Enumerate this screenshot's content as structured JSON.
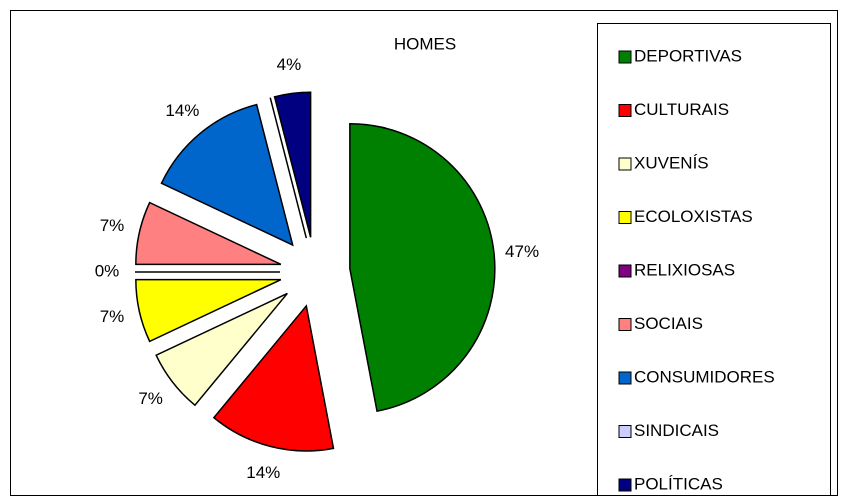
{
  "chart_data": {
    "type": "pie",
    "title": "HOMES",
    "categories": [
      "DEPORTIVAS",
      "CULTURAIS",
      "XUVENÍS",
      "ECOLOXISTAS",
      "RELIXIOSAS",
      "SOCIAIS",
      "CONSUMIDORES",
      "SINDICAIS",
      "POLÍTICAS"
    ],
    "values": [
      47,
      14,
      7,
      7,
      0,
      7,
      14,
      0,
      4
    ],
    "value_labels": [
      "47%",
      "14%",
      "7%",
      "7%",
      "0%",
      "7%",
      "14%",
      null,
      "4%"
    ],
    "colors": [
      "#008000",
      "#ff0000",
      "#ffffcc",
      "#ffff00",
      "#800080",
      "#ff8080",
      "#0066cc",
      "#ccccff",
      "#000080"
    ],
    "legend": "right"
  }
}
